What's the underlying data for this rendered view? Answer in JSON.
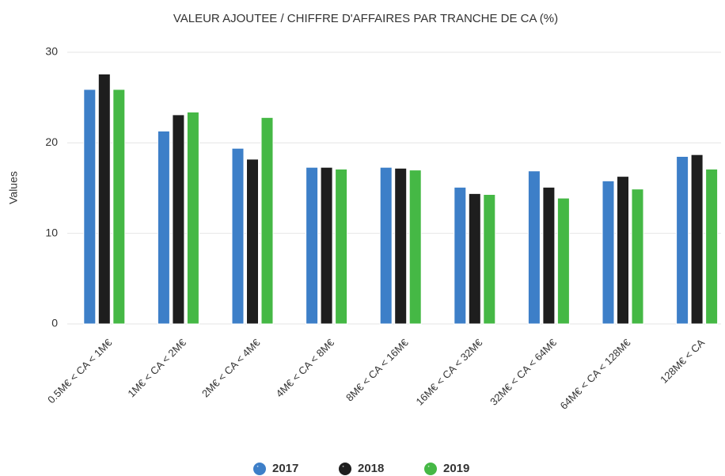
{
  "chart_data": {
    "type": "bar",
    "title": "VALEUR AJOUTEE / CHIFFRE D'AFFAIRES PAR TRANCHE DE CA (%)",
    "y_label": "Values",
    "categories": [
      "0.5M€ < CA < 1M€",
      "1M€ < CA < 2M€",
      "2M€ < CA < 4M€",
      "4M€ < CA < 8M€",
      "8M€ < CA < 16M€",
      "16M€ < CA < 32M€",
      "32M€ < CA < 64M€",
      "64M€ < CA < 128M€",
      "128M€ < CA"
    ],
    "series": [
      {
        "name": "2017",
        "color": "#3d7fc8",
        "values": [
          25.9,
          21.3,
          19.4,
          17.3,
          17.3,
          15.1,
          16.9,
          15.8,
          18.5
        ]
      },
      {
        "name": "2018",
        "color": "#1e1e1e",
        "values": [
          27.6,
          23.1,
          18.2,
          17.3,
          17.2,
          14.4,
          15.1,
          16.3,
          18.7
        ]
      },
      {
        "name": "2019",
        "color": "#45b845",
        "values": [
          25.9,
          23.4,
          22.8,
          17.1,
          17.0,
          14.3,
          13.9,
          14.9,
          17.1
        ]
      }
    ],
    "ylim": [
      0,
      30
    ],
    "yticks": [
      0,
      10,
      20,
      30
    ],
    "grid": true,
    "legend": "bottom"
  }
}
